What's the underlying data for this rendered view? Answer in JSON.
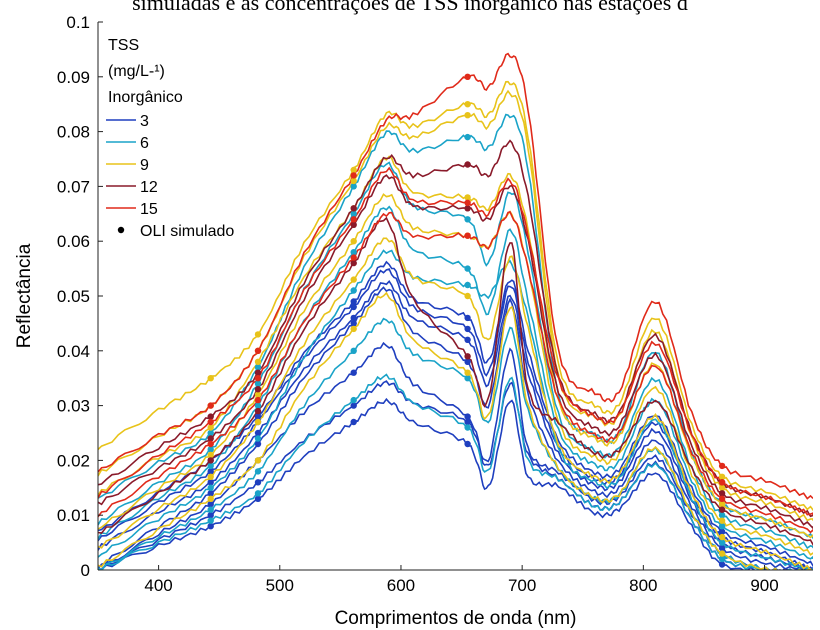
{
  "caption": "simuladas e as concentrações de TSS inorgânico nas estações d",
  "chart_data": {
    "type": "line",
    "xlabel": "Comprimentos de onda (nm)",
    "ylabel": "Reflectância",
    "xlim": [
      350,
      940
    ],
    "ylim": [
      0,
      0.1
    ],
    "xticks": [
      "400",
      "500",
      "600",
      "700",
      "800",
      "900"
    ],
    "yticks": [
      "0",
      "0.01",
      "0.02",
      "0.03",
      "0.04",
      "0.05",
      "0.06",
      "0.07",
      "0.08",
      "0.09",
      "0.1"
    ],
    "grid": false,
    "legend_position": "top-left",
    "legend": {
      "title_lines": [
        "TSS",
        "(mg/L-¹)",
        "Inorgânico"
      ],
      "entries": [
        {
          "label": "3",
          "color": "#1f3fbf"
        },
        {
          "label": "6",
          "color": "#1aa3c8"
        },
        {
          "label": "9",
          "color": "#e8c31a"
        },
        {
          "label": "12",
          "color": "#8a1a2a"
        },
        {
          "label": "15",
          "color": "#e02a1a"
        }
      ],
      "marker_label": "OLI simulado"
    },
    "oli_band_wavelengths": [
      443,
      482,
      561,
      655,
      865
    ],
    "series": [
      {
        "group": "3",
        "values": [
          0.008,
          0.013,
          0.027,
          0.023,
          0.001
        ]
      },
      {
        "group": "3",
        "values": [
          0.01,
          0.016,
          0.03,
          0.027,
          0.002
        ]
      },
      {
        "group": "3",
        "values": [
          0.012,
          0.02,
          0.036,
          0.028,
          0.003
        ]
      },
      {
        "group": "3",
        "values": [
          0.014,
          0.023,
          0.045,
          0.038,
          0.004
        ]
      },
      {
        "group": "3",
        "values": [
          0.016,
          0.025,
          0.046,
          0.042,
          0.005
        ]
      },
      {
        "group": "3",
        "values": [
          0.018,
          0.027,
          0.048,
          0.044,
          0.006
        ]
      },
      {
        "group": "3",
        "values": [
          0.02,
          0.028,
          0.049,
          0.046,
          0.007
        ]
      },
      {
        "group": "6",
        "values": [
          0.009,
          0.014,
          0.031,
          0.026,
          0.002
        ]
      },
      {
        "group": "6",
        "values": [
          0.011,
          0.018,
          0.04,
          0.035,
          0.003
        ]
      },
      {
        "group": "6",
        "values": [
          0.015,
          0.024,
          0.051,
          0.052,
          0.005
        ]
      },
      {
        "group": "6",
        "values": [
          0.019,
          0.03,
          0.058,
          0.055,
          0.008
        ]
      },
      {
        "group": "6",
        "values": [
          0.022,
          0.034,
          0.065,
          0.064,
          0.01
        ]
      },
      {
        "group": "6",
        "values": [
          0.025,
          0.037,
          0.07,
          0.079,
          0.012
        ]
      },
      {
        "group": "9",
        "values": [
          0.013,
          0.02,
          0.044,
          0.036,
          0.003
        ]
      },
      {
        "group": "9",
        "values": [
          0.017,
          0.027,
          0.053,
          0.05,
          0.006
        ]
      },
      {
        "group": "9",
        "values": [
          0.021,
          0.032,
          0.06,
          0.061,
          0.009
        ]
      },
      {
        "group": "9",
        "values": [
          0.026,
          0.038,
          0.066,
          0.068,
          0.012
        ]
      },
      {
        "group": "9",
        "values": [
          0.03,
          0.04,
          0.071,
          0.083,
          0.015
        ]
      },
      {
        "group": "9",
        "values": [
          0.035,
          0.043,
          0.073,
          0.085,
          0.017
        ]
      },
      {
        "group": "12",
        "values": [
          0.02,
          0.029,
          0.056,
          0.039,
          0.011
        ]
      },
      {
        "group": "12",
        "values": [
          0.024,
          0.033,
          0.063,
          0.066,
          0.014
        ]
      },
      {
        "group": "12",
        "values": [
          0.028,
          0.036,
          0.066,
          0.074,
          0.016
        ]
      },
      {
        "group": "15",
        "values": [
          0.023,
          0.031,
          0.057,
          0.061,
          0.013
        ]
      },
      {
        "group": "15",
        "values": [
          0.027,
          0.035,
          0.064,
          0.067,
          0.016
        ]
      },
      {
        "group": "15",
        "values": [
          0.03,
          0.04,
          0.072,
          0.09,
          0.019
        ]
      }
    ]
  }
}
